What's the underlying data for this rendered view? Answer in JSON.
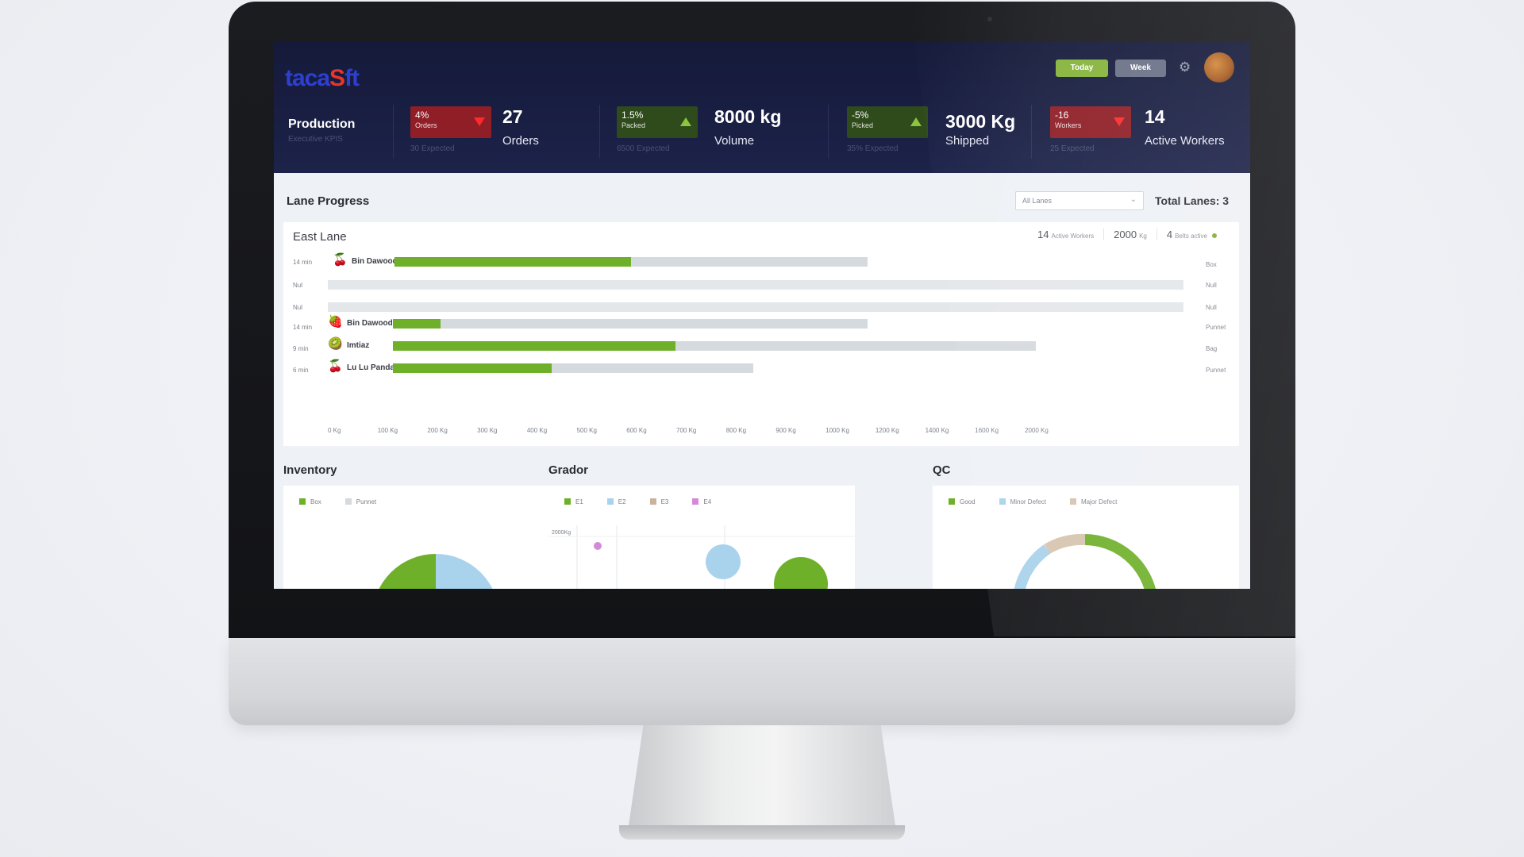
{
  "brand": {
    "logo_prefix": "taca",
    "logo_o": "S",
    "logo_rest": "ft"
  },
  "header": {
    "today_label": "Today",
    "week_label": "Week",
    "icons": [
      "gear-icon",
      "avatar"
    ]
  },
  "production": {
    "title": "Production",
    "subtitle": "Executive KPIS"
  },
  "kpis": [
    {
      "badge_value": "4%",
      "badge_label": "Orders",
      "trend": "down",
      "expected": "30 Expected",
      "value": "27",
      "label": "Orders"
    },
    {
      "badge_value": "1.5%",
      "badge_label": "Packed",
      "trend": "up",
      "expected": "6500 Expected",
      "value": "8000 kg",
      "label": "Volume"
    },
    {
      "badge_value": "-5%",
      "badge_label": "Picked",
      "trend": "up",
      "expected": "35% Expected",
      "value": "3000 Kg",
      "label": "Shipped"
    },
    {
      "badge_value": "-16",
      "badge_label": "Workers",
      "trend": "down",
      "expected": "25 Expected",
      "value": "14",
      "label": "Active Workers"
    }
  ],
  "lane_progress": {
    "title": "Lane Progress",
    "filter_value": "All Lanes",
    "total_lanes": "Total Lanes: 3",
    "lane_name": "East Lane",
    "stats": {
      "workers_value": "14",
      "workers_label": "Active Workers",
      "kg_value": "2000",
      "kg_label": "Kg",
      "belts_value": "4",
      "belts_label": "Belts active"
    },
    "rows": [
      {
        "time": "14 min",
        "fruit_icon": "cherry-icon",
        "name": "Bin Dawood",
        "unit": "Box",
        "progress": 0.5
      },
      {
        "time": "Nul",
        "fruit_icon": "",
        "name": "",
        "unit": "Null",
        "progress": 0
      },
      {
        "time": "Nul",
        "fruit_icon": "",
        "name": "",
        "unit": "Null",
        "progress": 0
      },
      {
        "time": "14 min",
        "fruit_icon": "strawberry-icon",
        "name": "Bin Dawood",
        "unit": "Punnet",
        "progress": 0.1
      },
      {
        "time": "9 min",
        "fruit_icon": "kiwi-icon",
        "name": "Imtiaz",
        "unit": "Bag",
        "progress": 0.44
      },
      {
        "time": "6 min",
        "fruit_icon": "cherry-icon",
        "name": "Lu Lu Panda",
        "unit": "Punnet",
        "progress": 0.44
      }
    ],
    "x_ticks": [
      "0 Kg",
      "100 Kg",
      "200 Kg",
      "300 Kg",
      "400 Kg",
      "500 Kg",
      "600 Kg",
      "700 Kg",
      "800 Kg",
      "900 Kg",
      "1000 Kg",
      "1200 Kg",
      "1400 Kg",
      "1600 Kg",
      "2000 Kg"
    ]
  },
  "panels": {
    "inventory": {
      "title": "Inventory",
      "legend": [
        "Box",
        "Punnet"
      ],
      "colors": [
        "#6fb02a",
        "#d5dade"
      ]
    },
    "grader": {
      "title": "Grador",
      "legend": [
        "E1",
        "E2",
        "E3",
        "E4"
      ],
      "colors": [
        "#6fb02a",
        "#a9d2ec",
        "#c9b39e",
        "#d58ad8"
      ],
      "y_label": "2000Kg"
    },
    "qc": {
      "title": "QC",
      "legend": [
        "Good",
        "Minor Defect",
        "Major Defect"
      ],
      "colors": [
        "#6fb02a",
        "#a9d2ec",
        "#d6c4ae"
      ]
    }
  }
}
